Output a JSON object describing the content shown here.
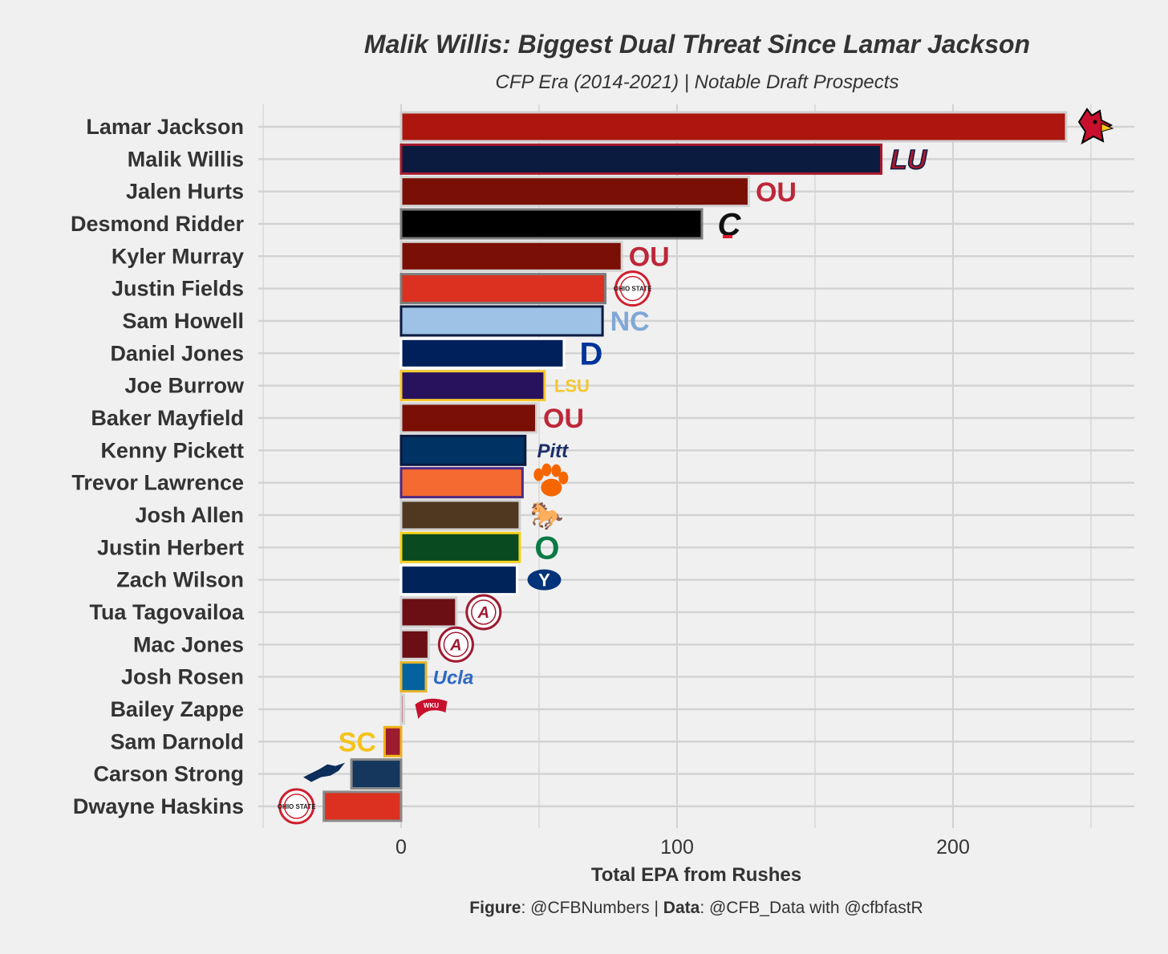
{
  "chart_data": {
    "type": "bar",
    "orientation": "horizontal",
    "title": "Malik Willis: Biggest Dual Threat Since Lamar Jackson",
    "subtitle": "CFP Era (2014-2021) | Notable Draft Prospects",
    "xlabel": "Total EPA from Rushes",
    "ylabel": "",
    "xlim": [
      -52,
      265
    ],
    "xticks": [
      0,
      100,
      200
    ],
    "grid": true,
    "legend": "none",
    "caption": {
      "figure_label": "Figure",
      "figure_value": ": @CFBNumbers | ",
      "data_label": "Data",
      "data_value": ": @CFB_Data with @cfbfastR"
    },
    "categories": [
      "Lamar Jackson",
      "Malik Willis",
      "Jalen Hurts",
      "Desmond Ridder",
      "Kyler Murray",
      "Justin Fields",
      "Sam Howell",
      "Daniel Jones",
      "Joe Burrow",
      "Baker Mayfield",
      "Kenny Pickett",
      "Trevor Lawrence",
      "Josh Allen",
      "Justin Herbert",
      "Zach Wilson",
      "Tua Tagovailoa",
      "Mac Jones",
      "Josh Rosen",
      "Bailey Zappe",
      "Sam Darnold",
      "Carson Strong",
      "Dwayne Haskins"
    ],
    "values": [
      241,
      174,
      126,
      109,
      80,
      74,
      73,
      59,
      52,
      49,
      45,
      44,
      43,
      43,
      42,
      20,
      10,
      9,
      1,
      -6,
      -18,
      -28
    ],
    "schools": [
      "Louisville",
      "Liberty",
      "Oklahoma",
      "Cincinnati",
      "Oklahoma",
      "Ohio State",
      "North Carolina",
      "Duke",
      "LSU",
      "Oklahoma",
      "Pitt",
      "Clemson",
      "Wyoming",
      "Oregon",
      "BYU",
      "Alabama",
      "Alabama",
      "UCLA",
      "Western Kentucky",
      "USC",
      "Nevada",
      "Ohio State"
    ],
    "fill_colors": [
      "#ad160e",
      "#0b1a3f",
      "#7a0f06",
      "#000000",
      "#7a0f06",
      "#dc3120",
      "#9dc2e6",
      "#00205b",
      "#28125e",
      "#7a0f06",
      "#003263",
      "#f56a30",
      "#4f3720",
      "#0a4a20",
      "#00235a",
      "#6b0f14",
      "#6b0f14",
      "#04629e",
      "#c92d37",
      "#9a1c2e",
      "#15375e",
      "#dc3120"
    ],
    "border_colors": [
      "#cfcfcf",
      "#a71a2e",
      "#d3d3d3",
      "#7c7c7c",
      "#d3d3d3",
      "#7c7c7c",
      "#0b1a3f",
      "#ffffff",
      "#f7c830",
      "#d3d3d3",
      "#0b1a3f",
      "#4e2983",
      "#cfcfcf",
      "#f6d11b",
      "#ffffff",
      "#d3d3d3",
      "#d3d3d3",
      "#e7b52a",
      "#d3d3d3",
      "#f2b21b",
      "#8a8a8a",
      "#8a8a8a"
    ]
  },
  "logos": [
    {
      "name": "louisville-cardinal-logo",
      "kind": "bird",
      "color": "#c8102e",
      "accent": "#000000",
      "beak": "#f6c61a"
    },
    {
      "name": "liberty-lu-logo",
      "kind": "text",
      "text": "LU",
      "color": "#a71a2e",
      "stroke": "#0b1a3f",
      "italic": true
    },
    {
      "name": "oklahoma-ou-logo",
      "kind": "text",
      "text": "OU",
      "color": "#be2739",
      "italic": false
    },
    {
      "name": "cincinnati-c-logo",
      "kind": "text",
      "text": "C",
      "color": "#111111",
      "accent": "#e11a2c",
      "italic": true
    },
    {
      "name": "oklahoma-ou-logo",
      "kind": "text",
      "text": "OU",
      "color": "#be2739",
      "italic": false
    },
    {
      "name": "ohio-state-logo",
      "kind": "roundel",
      "text": "OHIO STATE",
      "color": "#cf1f2e"
    },
    {
      "name": "north-carolina-nc-logo",
      "kind": "text",
      "text": "NC",
      "color": "#7fa8d8",
      "italic": false
    },
    {
      "name": "duke-d-logo",
      "kind": "text",
      "text": "D",
      "color": "#00339a",
      "italic": false
    },
    {
      "name": "lsu-logo",
      "kind": "text",
      "text": "LSU",
      "color": "#f5c72e",
      "italic": false
    },
    {
      "name": "oklahoma-ou-logo",
      "kind": "text",
      "text": "OU",
      "color": "#be2739",
      "italic": false
    },
    {
      "name": "pitt-logo",
      "kind": "text",
      "text": "Pitt",
      "color": "#1b2f6b",
      "italic": true
    },
    {
      "name": "clemson-paw-logo",
      "kind": "paw",
      "color": "#f56600"
    },
    {
      "name": "wyoming-bucking-horse-logo",
      "kind": "text",
      "text": "🐎",
      "color": "#4f2e10",
      "italic": false
    },
    {
      "name": "oregon-o-logo",
      "kind": "text",
      "text": "O",
      "color": "#0a7a46",
      "italic": false
    },
    {
      "name": "byu-y-logo",
      "kind": "oval",
      "text": "Y",
      "color": "#00337a"
    },
    {
      "name": "alabama-a-logo",
      "kind": "roundel",
      "text": "A",
      "color": "#9e1b32"
    },
    {
      "name": "alabama-a-logo",
      "kind": "roundel",
      "text": "A",
      "color": "#9e1b32"
    },
    {
      "name": "ucla-logo",
      "kind": "text",
      "text": "Ucla",
      "color": "#2d68c4",
      "italic": true
    },
    {
      "name": "western-kentucky-towel-logo",
      "kind": "flag",
      "text": "WKU",
      "color": "#c8102e"
    },
    {
      "name": "usc-sc-logo",
      "kind": "text",
      "text": "SC",
      "color": "#f5c31b",
      "italic": false
    },
    {
      "name": "nevada-wolf-logo",
      "kind": "wolf",
      "color": "#0d2d5a"
    },
    {
      "name": "ohio-state-logo",
      "kind": "roundel",
      "text": "OHIO STATE",
      "color": "#cf1f2e"
    }
  ]
}
